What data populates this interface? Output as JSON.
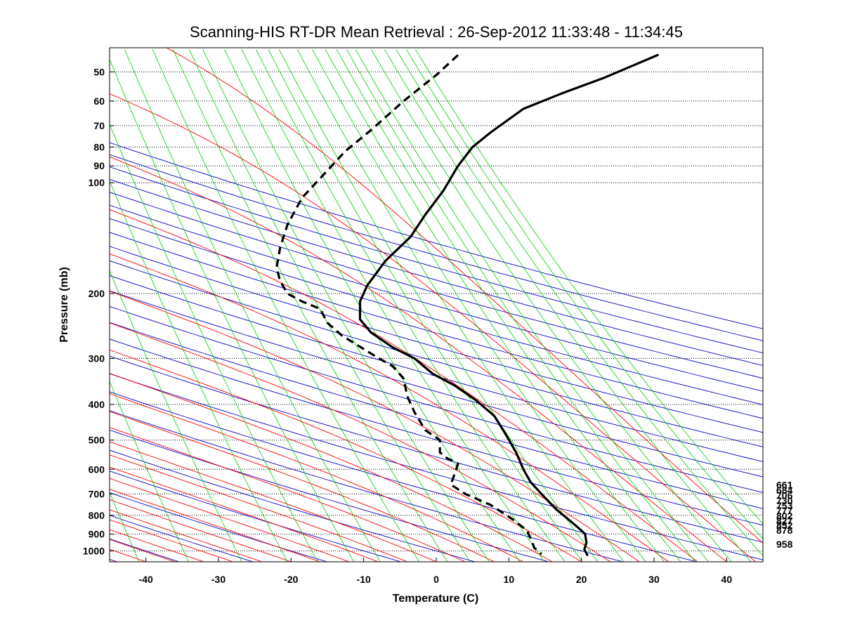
{
  "chart_data": {
    "type": "line",
    "title": "Scanning-HIS RT-DR Mean Retrieval : 26-Sep-2012 11:33:48 - 11:34:45",
    "xlabel": "Temperature (C)",
    "ylabel": "Pressure (mb)",
    "xlim": [
      -45,
      45
    ],
    "ylim": [
      1070,
      43
    ],
    "y_scale": "log",
    "y_reversed": true,
    "grid": "horizontal dotted at pressure ticks",
    "x_ticks": [
      "-40",
      "-30",
      "-20",
      "-10",
      "0",
      "10",
      "20",
      "30",
      "40"
    ],
    "y_ticks": [
      "50",
      "60",
      "70",
      "80",
      "90",
      "100",
      "200",
      "300",
      "400",
      "500",
      "600",
      "700",
      "800",
      "900",
      "1000"
    ],
    "right_labels": [
      "661",
      "684",
      "706",
      "730",
      "753",
      "777",
      "802",
      "827",
      "852",
      "878",
      "958"
    ],
    "background_lines": [
      {
        "name": "dry adiabats",
        "color": "#0000cc"
      },
      {
        "name": "moist adiabats",
        "color": "#ff0000"
      },
      {
        "name": "mixing ratio lines",
        "color": "#00cc00"
      },
      {
        "name": "overlap",
        "color": "#800080"
      }
    ],
    "series": [
      {
        "style": "solid",
        "color": "#000000",
        "points": [
          [
            30.5,
            45
          ],
          [
            23,
            52
          ],
          [
            17.5,
            57
          ],
          [
            12,
            63
          ],
          [
            7.5,
            73
          ],
          [
            5,
            80
          ],
          [
            3,
            90
          ],
          [
            1,
            105
          ],
          [
            -1.5,
            122
          ],
          [
            -3.5,
            140
          ],
          [
            -7,
            163
          ],
          [
            -9.5,
            190
          ],
          [
            -10.5,
            210
          ],
          [
            -10.5,
            235
          ],
          [
            -9,
            255
          ],
          [
            -6,
            280
          ],
          [
            -3,
            300
          ],
          [
            -0.5,
            330
          ],
          [
            2.5,
            355
          ],
          [
            5.5,
            390
          ],
          [
            8,
            430
          ],
          [
            9.5,
            480
          ],
          [
            11,
            540
          ],
          [
            12,
            600
          ],
          [
            13,
            650
          ],
          [
            14.5,
            700
          ],
          [
            16.5,
            770
          ],
          [
            18.5,
            830
          ],
          [
            20,
            880
          ],
          [
            20.5,
            900
          ],
          [
            20.7,
            950
          ],
          [
            20.4,
            990
          ],
          [
            20.8,
            1025
          ]
        ]
      },
      {
        "style": "dashed",
        "color": "#000000",
        "points": [
          [
            3,
            45
          ],
          [
            0,
            51
          ],
          [
            -4.5,
            60
          ],
          [
            -9,
            72
          ],
          [
            -12.5,
            82
          ],
          [
            -15.5,
            95
          ],
          [
            -18.5,
            110
          ],
          [
            -20.5,
            130
          ],
          [
            -21.5,
            150
          ],
          [
            -22,
            170
          ],
          [
            -21.5,
            185
          ],
          [
            -20.5,
            200
          ],
          [
            -18.5,
            210
          ],
          [
            -16,
            220
          ],
          [
            -15,
            240
          ],
          [
            -13,
            260
          ],
          [
            -11,
            275
          ],
          [
            -8.5,
            295
          ],
          [
            -6,
            315
          ],
          [
            -4.5,
            340
          ],
          [
            -4,
            380
          ],
          [
            -3,
            420
          ],
          [
            -1.5,
            470
          ],
          [
            0.5,
            500
          ],
          [
            0.5,
            540
          ],
          [
            1.5,
            560
          ],
          [
            3,
            580
          ],
          [
            2.5,
            620
          ],
          [
            2,
            660
          ],
          [
            4,
            700
          ],
          [
            7.5,
            750
          ],
          [
            10.5,
            820
          ],
          [
            12.5,
            880
          ],
          [
            13,
            925
          ],
          [
            13.5,
            980
          ],
          [
            14.5,
            1020
          ]
        ]
      }
    ]
  }
}
